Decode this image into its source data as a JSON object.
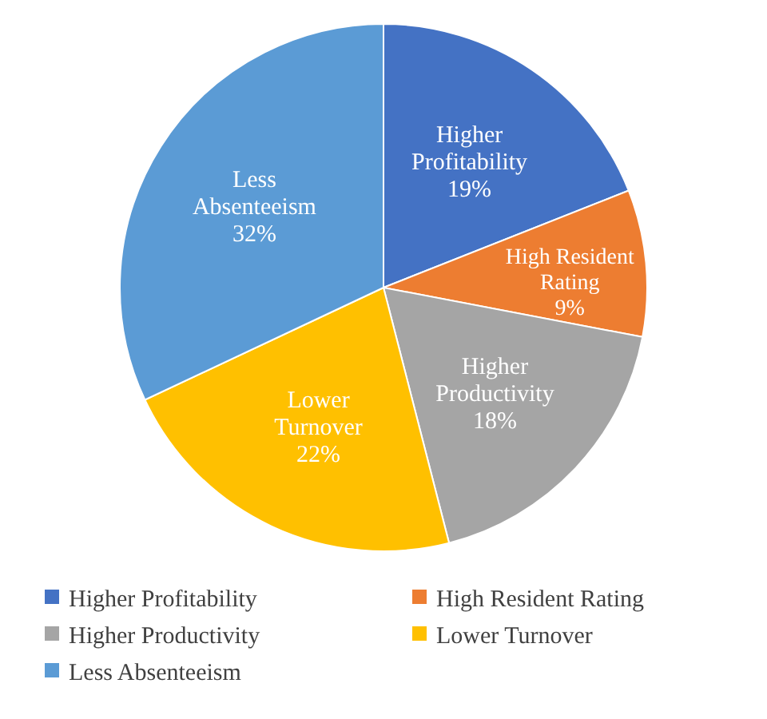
{
  "chart_data": {
    "type": "pie",
    "categories": [
      "Higher Profitability",
      "High Resident Rating",
      "Higher Productivity",
      "Lower Turnover",
      "Less Absenteeism"
    ],
    "values": [
      19,
      9,
      18,
      22,
      32
    ],
    "value_labels": [
      "19%",
      "9%",
      "18%",
      "22%",
      "32%"
    ],
    "colors": [
      "#4472c4",
      "#ed7d31",
      "#a5a5a5",
      "#ffc000",
      "#5b9bd5"
    ],
    "legend": "bottom"
  }
}
